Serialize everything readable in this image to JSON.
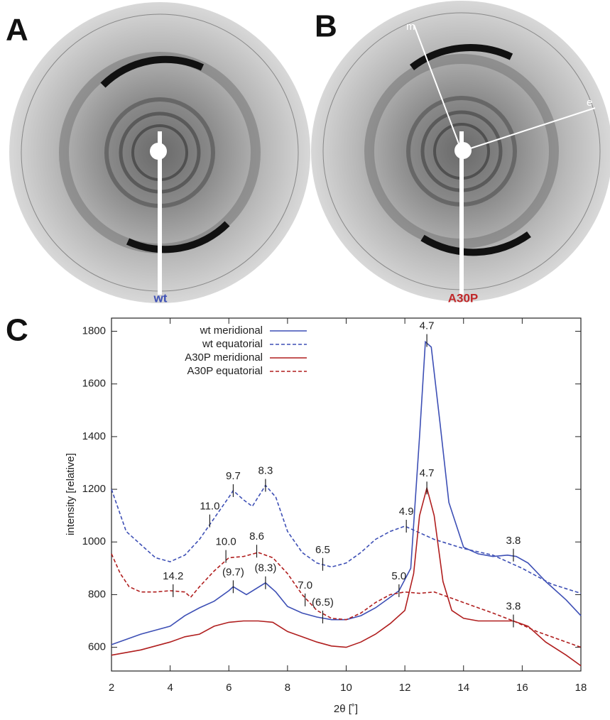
{
  "panels": {
    "a": {
      "letter": "A",
      "sample": "wt"
    },
    "b": {
      "letter": "B",
      "sample": "A30P",
      "axis_m": "m",
      "axis_e": "e"
    },
    "c": {
      "letter": "C"
    }
  },
  "chart_data": {
    "type": "line",
    "xlabel": "2θ [˚]",
    "ylabel": "intensity [relative]",
    "xlim": [
      2,
      18
    ],
    "xticks": [
      2,
      4,
      6,
      8,
      10,
      12,
      14,
      16,
      18
    ],
    "ylim": [
      510,
      1850
    ],
    "yticks": [
      600,
      800,
      1000,
      1200,
      1400,
      1600,
      1800
    ],
    "legend": "upper left",
    "series": [
      {
        "name": "wt meridional",
        "color": "#3d4fb5",
        "line_style": "solid",
        "x": [
          2,
          2.5,
          3,
          3.5,
          4,
          4.5,
          5,
          5.5,
          6,
          6.15,
          6.6,
          7.25,
          7.6,
          8,
          8.5,
          9,
          9.5,
          10,
          10.5,
          11,
          11.5,
          11.8,
          12.2,
          12.5,
          12.7,
          12.9,
          13.2,
          13.5,
          14,
          14.5,
          15,
          15.5,
          15.8,
          16.2,
          16.8,
          17.5,
          18
        ],
        "values": [
          610,
          630,
          650,
          665,
          680,
          720,
          750,
          775,
          815,
          830,
          800,
          845,
          810,
          755,
          730,
          715,
          705,
          705,
          720,
          750,
          790,
          815,
          900,
          1400,
          1760,
          1740,
          1450,
          1150,
          980,
          955,
          945,
          950,
          945,
          920,
          850,
          780,
          720
        ]
      },
      {
        "name": "wt equatorial",
        "color": "#3d4fb5",
        "line_style": "dashed",
        "x": [
          2,
          2.5,
          3,
          3.5,
          4,
          4.5,
          5,
          5.5,
          6,
          6.15,
          6.5,
          6.8,
          7.25,
          7.6,
          8,
          8.5,
          9,
          9.5,
          10,
          10.5,
          11,
          11.5,
          12,
          12.5,
          13,
          14,
          15,
          16,
          17,
          18
        ],
        "values": [
          1200,
          1040,
          990,
          940,
          925,
          950,
          1010,
          1090,
          1170,
          1195,
          1160,
          1135,
          1215,
          1170,
          1040,
          960,
          920,
          905,
          920,
          960,
          1010,
          1040,
          1060,
          1035,
          1010,
          975,
          950,
          900,
          840,
          805
        ]
      },
      {
        "name": "A30P meridional",
        "color": "#b01e1e",
        "line_style": "solid",
        "x": [
          2,
          3,
          4,
          4.5,
          5,
          5.5,
          6,
          6.5,
          7,
          7.5,
          8,
          8.5,
          9,
          9.5,
          10,
          10.5,
          11,
          11.5,
          12,
          12.3,
          12.5,
          12.75,
          13,
          13.3,
          13.6,
          14,
          14.5,
          15,
          15.7,
          16.2,
          16.8,
          17.5,
          18
        ],
        "values": [
          570,
          590,
          620,
          640,
          650,
          680,
          695,
          700,
          700,
          695,
          660,
          640,
          620,
          605,
          600,
          620,
          650,
          690,
          740,
          880,
          1100,
          1205,
          1100,
          850,
          740,
          710,
          700,
          700,
          700,
          680,
          620,
          570,
          530
        ]
      },
      {
        "name": "A30P equatorial",
        "color": "#b01e1e",
        "line_style": "dashed",
        "x": [
          2,
          2.3,
          2.6,
          3,
          3.5,
          4,
          4.5,
          4.7,
          5,
          5.5,
          6,
          6.5,
          7,
          7.5,
          8,
          8.5,
          9,
          9.5,
          10,
          10.5,
          11,
          11.5,
          12,
          12.5,
          13,
          13.5,
          14,
          15,
          15.7,
          16.5,
          17,
          18
        ],
        "values": [
          955,
          880,
          830,
          810,
          810,
          815,
          810,
          790,
          830,
          890,
          940,
          945,
          960,
          940,
          880,
          800,
          740,
          710,
          705,
          730,
          770,
          800,
          810,
          805,
          810,
          790,
          770,
          730,
          700,
          660,
          640,
          600
        ]
      }
    ],
    "annotations": [
      {
        "text": "4.7",
        "x": 12.75,
        "y": 1765
      },
      {
        "text": "9.7",
        "x": 6.15,
        "y": 1195
      },
      {
        "text": "8.3",
        "x": 7.25,
        "y": 1215
      },
      {
        "text": "11.0",
        "x": 5.35,
        "y": 1080
      },
      {
        "text": "4.9",
        "x": 12.05,
        "y": 1060
      },
      {
        "text": "10.0",
        "x": 5.9,
        "y": 945
      },
      {
        "text": "8.6",
        "x": 6.95,
        "y": 965
      },
      {
        "text": "6.5",
        "x": 9.2,
        "y": 915
      },
      {
        "text": "14.2",
        "x": 4.1,
        "y": 815
      },
      {
        "text": "(9.7)",
        "x": 6.15,
        "y": 830
      },
      {
        "text": "(8.3)",
        "x": 7.25,
        "y": 845
      },
      {
        "text": "7.0",
        "x": 8.6,
        "y": 780
      },
      {
        "text": "(6.5)",
        "x": 9.2,
        "y": 715
      },
      {
        "text": "5.0",
        "x": 11.8,
        "y": 815
      },
      {
        "text": "4.7",
        "x": 12.75,
        "y": 1205
      },
      {
        "text": "3.8",
        "x": 15.7,
        "y": 950
      },
      {
        "text": "3.8",
        "x": 15.7,
        "y": 700
      }
    ]
  }
}
